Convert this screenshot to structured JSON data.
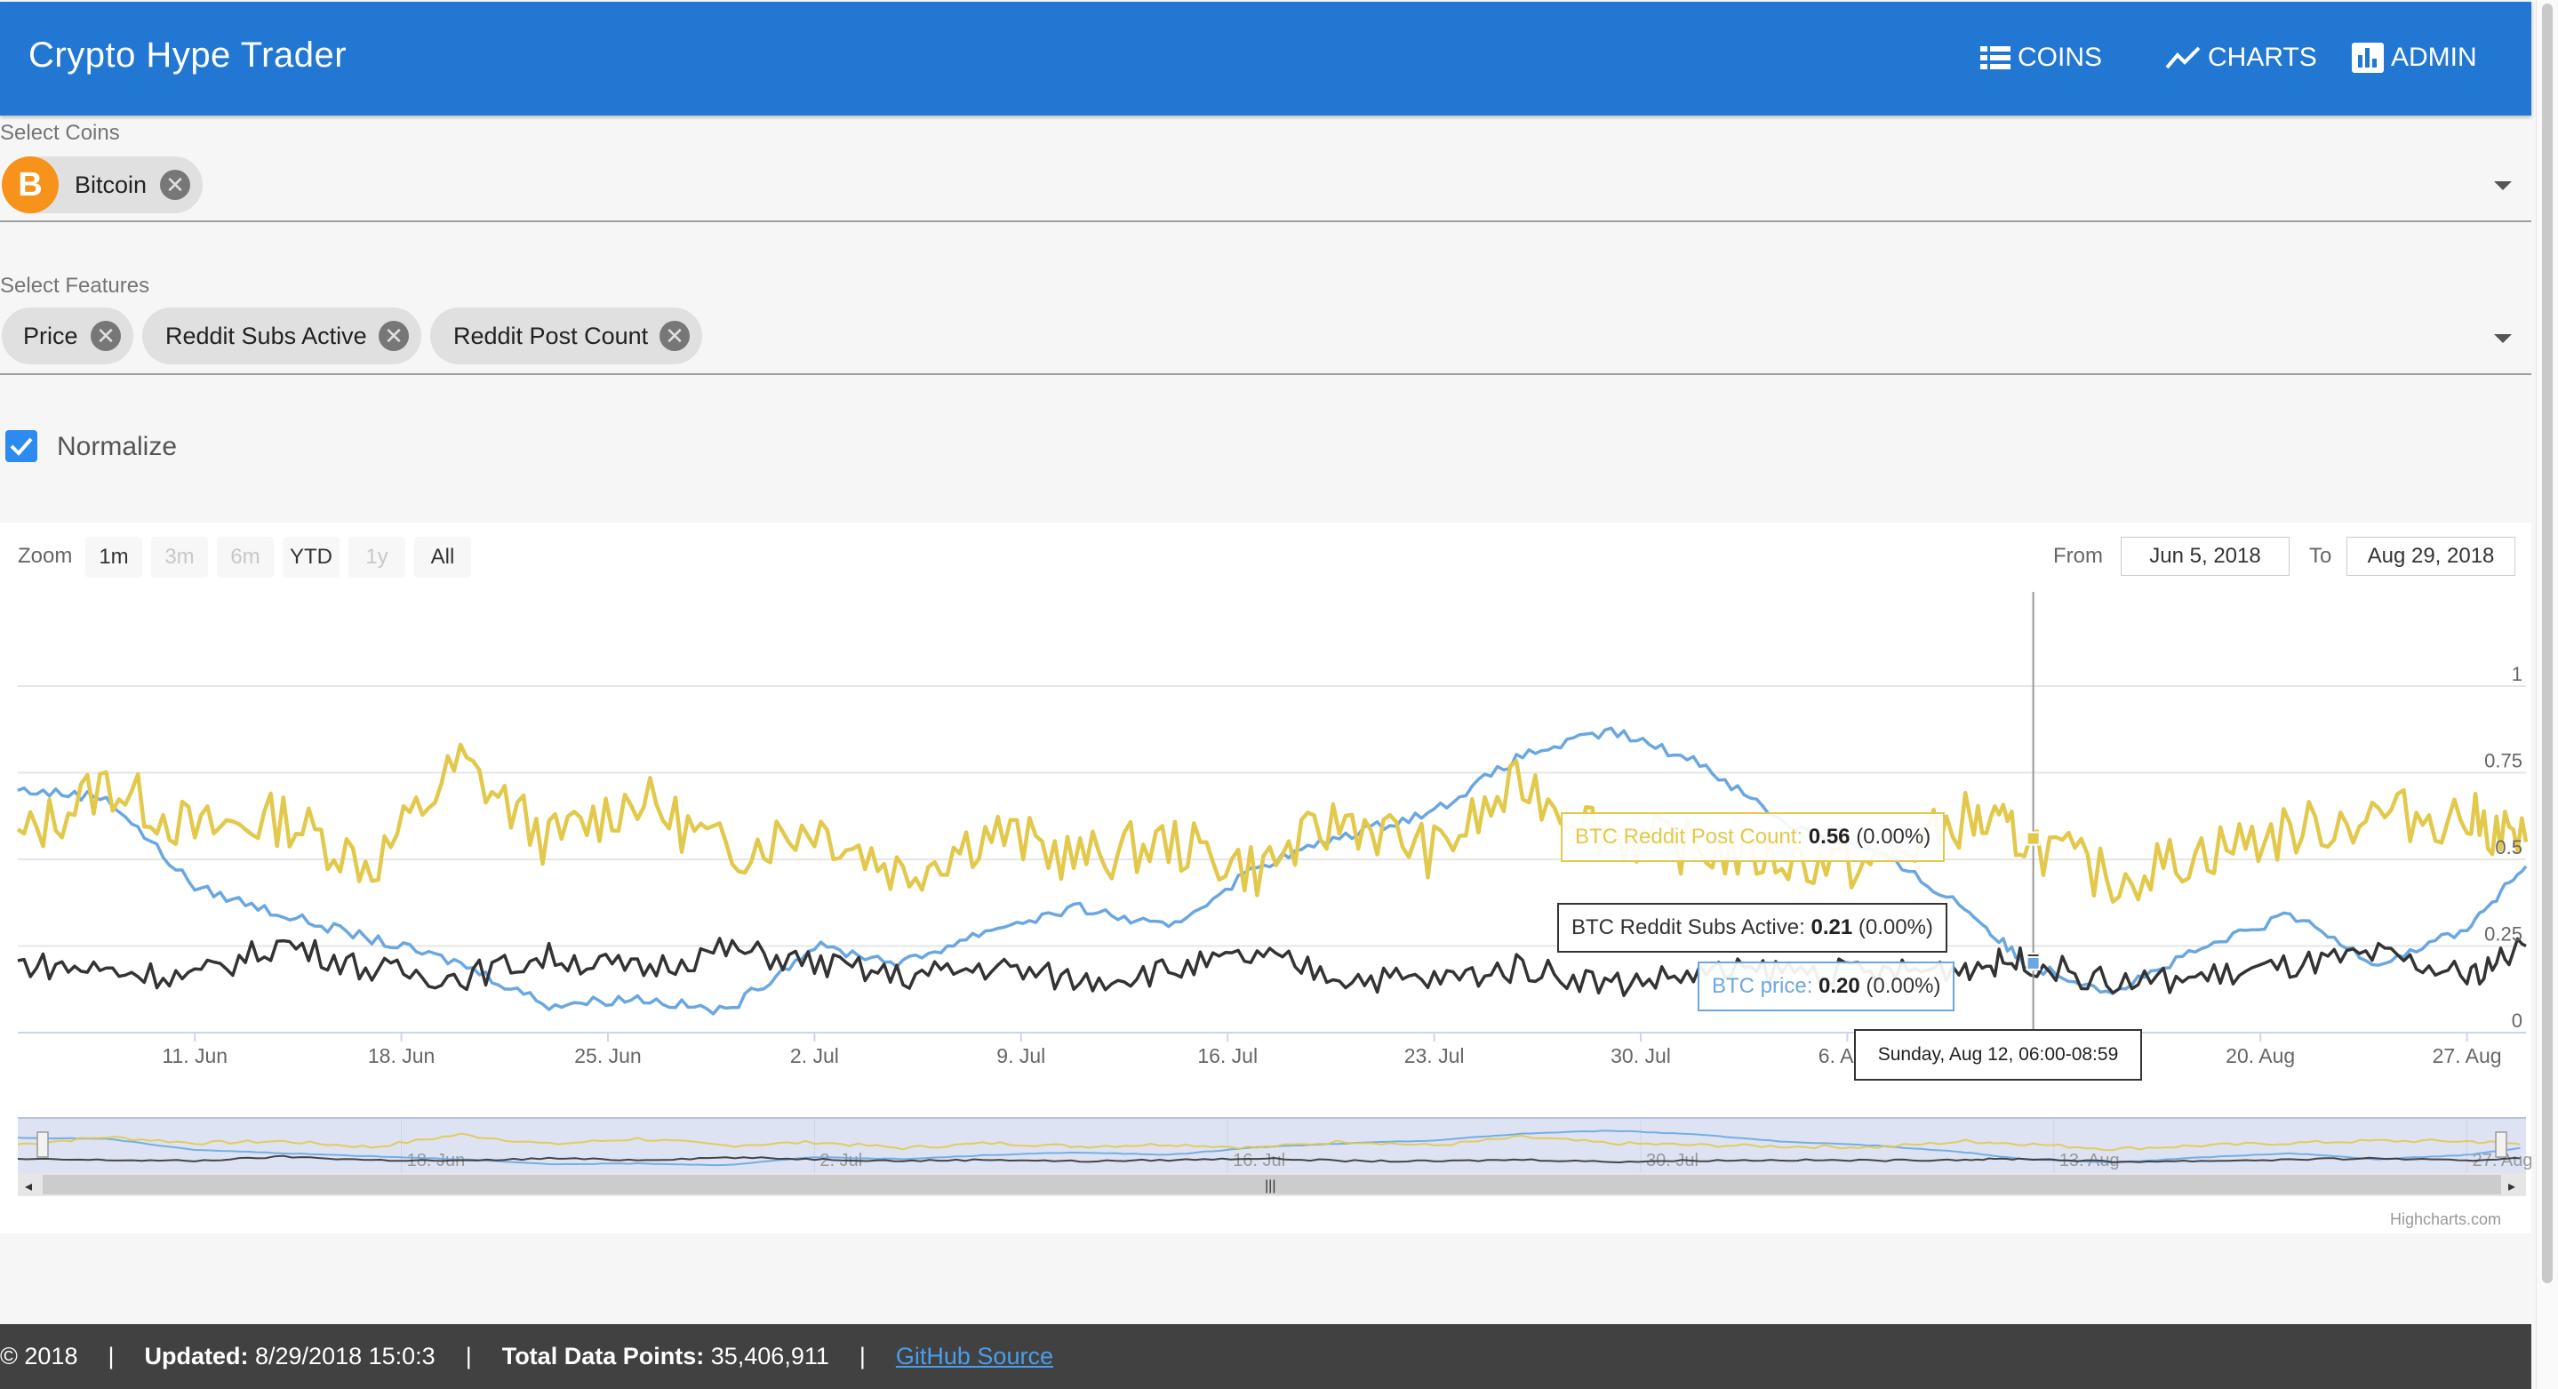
{
  "app": {
    "title": "Crypto Hype Trader"
  },
  "nav": [
    {
      "label": "COINS",
      "icon": "list-icon"
    },
    {
      "label": "CHARTS",
      "icon": "trend-icon"
    },
    {
      "label": "ADMIN",
      "icon": "bar-chart-icon"
    }
  ],
  "coins_select": {
    "label": "Select Coins",
    "chips": [
      {
        "label": "Bitcoin",
        "avatar": "B",
        "color": "#f7931a"
      }
    ]
  },
  "features_select": {
    "label": "Select Features",
    "chips": [
      {
        "label": "Price"
      },
      {
        "label": "Reddit Subs Active"
      },
      {
        "label": "Reddit Post Count"
      }
    ]
  },
  "normalize": {
    "label": "Normalize",
    "checked": true
  },
  "range_selector": {
    "zoom_label": "Zoom",
    "buttons": [
      {
        "label": "1m",
        "enabled": true
      },
      {
        "label": "3m",
        "enabled": false
      },
      {
        "label": "6m",
        "enabled": false
      },
      {
        "label": "YTD",
        "enabled": true
      },
      {
        "label": "1y",
        "enabled": false
      },
      {
        "label": "All",
        "enabled": true
      }
    ],
    "from_label": "From",
    "from_value": "Jun 5, 2018",
    "to_label": "To",
    "to_value": "Aug 29, 2018"
  },
  "chart_data": {
    "type": "line",
    "x_start": "2018-06-05",
    "x_end": "2018-08-29",
    "x_ticks": [
      "11. Jun",
      "18. Jun",
      "25. Jun",
      "2. Jul",
      "9. Jul",
      "16. Jul",
      "23. Jul",
      "30. Jul",
      "6. Aug",
      "13. Aug",
      "20. Aug",
      "27. Aug"
    ],
    "navigator_ticks": [
      "18. Jun",
      "2. Jul",
      "16. Jul",
      "30. Jul",
      "13. Aug",
      "27. Aug"
    ],
    "y_ticks": [
      "0",
      "0.25",
      "0.5",
      "0.75",
      "1"
    ],
    "ylim": [
      0,
      1
    ],
    "grid": true,
    "series": [
      {
        "name": "BTC Reddit Post Count",
        "color": "#e2c94b",
        "x": [
          "2018-06-05",
          "2018-06-08",
          "2018-06-11",
          "2018-06-14",
          "2018-06-17",
          "2018-06-20",
          "2018-06-23",
          "2018-06-26",
          "2018-06-29",
          "2018-07-02",
          "2018-07-05",
          "2018-07-08",
          "2018-07-11",
          "2018-07-14",
          "2018-07-17",
          "2018-07-20",
          "2018-07-23",
          "2018-07-26",
          "2018-07-29",
          "2018-08-01",
          "2018-08-04",
          "2018-08-07",
          "2018-08-10",
          "2018-08-12",
          "2018-08-15",
          "2018-08-18",
          "2018-08-21",
          "2018-08-24",
          "2018-08-27",
          "2018-08-29"
        ],
        "y": [
          0.55,
          0.72,
          0.58,
          0.62,
          0.48,
          0.78,
          0.55,
          0.68,
          0.52,
          0.6,
          0.46,
          0.58,
          0.5,
          0.55,
          0.47,
          0.62,
          0.52,
          0.72,
          0.57,
          0.53,
          0.5,
          0.48,
          0.62,
          0.56,
          0.44,
          0.52,
          0.58,
          0.63,
          0.62,
          0.55
        ]
      },
      {
        "name": "BTC Reddit Subs Active",
        "color": "#333333",
        "x": [
          "2018-06-05",
          "2018-06-08",
          "2018-06-11",
          "2018-06-14",
          "2018-06-17",
          "2018-06-20",
          "2018-06-23",
          "2018-06-26",
          "2018-06-29",
          "2018-07-02",
          "2018-07-05",
          "2018-07-08",
          "2018-07-11",
          "2018-07-14",
          "2018-07-17",
          "2018-07-20",
          "2018-07-23",
          "2018-07-26",
          "2018-07-29",
          "2018-08-01",
          "2018-08-04",
          "2018-08-07",
          "2018-08-10",
          "2018-08-12",
          "2018-08-15",
          "2018-08-18",
          "2018-08-21",
          "2018-08-24",
          "2018-08-27",
          "2018-08-29"
        ],
        "y": [
          0.2,
          0.18,
          0.16,
          0.26,
          0.18,
          0.16,
          0.22,
          0.18,
          0.24,
          0.2,
          0.16,
          0.19,
          0.15,
          0.18,
          0.22,
          0.16,
          0.15,
          0.19,
          0.14,
          0.17,
          0.18,
          0.17,
          0.19,
          0.21,
          0.14,
          0.16,
          0.19,
          0.22,
          0.16,
          0.25
        ]
      },
      {
        "name": "BTC price",
        "color": "#6aa7e0",
        "x": [
          "2018-06-05",
          "2018-06-08",
          "2018-06-11",
          "2018-06-14",
          "2018-06-17",
          "2018-06-20",
          "2018-06-23",
          "2018-06-26",
          "2018-06-29",
          "2018-07-02",
          "2018-07-05",
          "2018-07-08",
          "2018-07-11",
          "2018-07-14",
          "2018-07-17",
          "2018-07-20",
          "2018-07-23",
          "2018-07-26",
          "2018-07-29",
          "2018-08-01",
          "2018-08-04",
          "2018-08-07",
          "2018-08-10",
          "2018-08-12",
          "2018-08-15",
          "2018-08-18",
          "2018-08-21",
          "2018-08-24",
          "2018-08-27",
          "2018-08-29"
        ],
        "y": [
          0.7,
          0.68,
          0.42,
          0.34,
          0.27,
          0.2,
          0.08,
          0.1,
          0.06,
          0.25,
          0.2,
          0.3,
          0.36,
          0.3,
          0.48,
          0.57,
          0.64,
          0.8,
          0.87,
          0.78,
          0.6,
          0.52,
          0.36,
          0.2,
          0.12,
          0.24,
          0.34,
          0.2,
          0.3,
          0.48
        ]
      }
    ]
  },
  "tooltip": {
    "date": "Sunday, Aug 12, 06:00-08:59",
    "post_count": {
      "name": "BTC Reddit Post Count",
      "value": "0.56",
      "pct": "(0.00%)"
    },
    "subs_active": {
      "name": "BTC Reddit Subs Active",
      "value": "0.21",
      "pct": "(0.00%)"
    },
    "price": {
      "name": "BTC price",
      "value": "0.20",
      "pct": "(0.00%)"
    }
  },
  "credits": "Highcharts.com",
  "footer": {
    "copyright": "© 2018",
    "updated_label": "Updated:",
    "updated_value": "8/29/2018 15:0:3",
    "points_label": "Total Data Points:",
    "points_value": "35,406,911",
    "link": "GitHub Source"
  }
}
